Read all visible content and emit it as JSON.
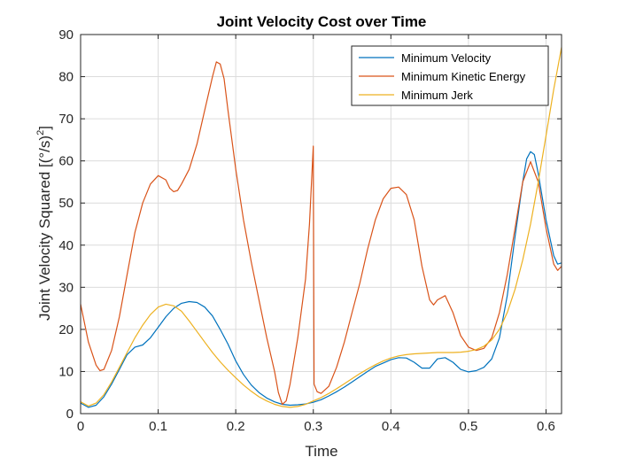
{
  "chart_data": {
    "type": "line",
    "title": "Joint Velocity Cost over Time",
    "xlabel": "Time",
    "ylabel_main": "Joint Velocity Squared [(°/s)",
    "ylabel_sup": "2",
    "ylabel_close": "]",
    "xlim": [
      0,
      0.62
    ],
    "ylim": [
      0,
      90
    ],
    "xticks": [
      0,
      0.1,
      0.2,
      0.3,
      0.4,
      0.5,
      0.6
    ],
    "xtick_labels": [
      "0",
      "0.1",
      "0.2",
      "0.3",
      "0.4",
      "0.5",
      "0.6"
    ],
    "yticks": [
      0,
      10,
      20,
      30,
      40,
      50,
      60,
      70,
      80,
      90
    ],
    "ytick_labels": [
      "0",
      "10",
      "20",
      "30",
      "40",
      "50",
      "60",
      "70",
      "80",
      "90"
    ],
    "grid": true,
    "legend_position": "top-right",
    "series": [
      {
        "name": "Minimum Velocity",
        "color": "#0072BD",
        "points": [
          [
            0,
            2.5
          ],
          [
            0.01,
            1.5
          ],
          [
            0.02,
            2
          ],
          [
            0.03,
            4
          ],
          [
            0.04,
            7
          ],
          [
            0.05,
            10.5
          ],
          [
            0.06,
            14
          ],
          [
            0.07,
            15.8
          ],
          [
            0.08,
            16.3
          ],
          [
            0.09,
            18
          ],
          [
            0.1,
            20.5
          ],
          [
            0.11,
            23
          ],
          [
            0.12,
            25
          ],
          [
            0.13,
            26.2
          ],
          [
            0.14,
            26.6
          ],
          [
            0.15,
            26.4
          ],
          [
            0.16,
            25.3
          ],
          [
            0.17,
            23.2
          ],
          [
            0.18,
            20
          ],
          [
            0.19,
            16.5
          ],
          [
            0.2,
            12.5
          ],
          [
            0.21,
            9.3
          ],
          [
            0.22,
            6.8
          ],
          [
            0.23,
            5
          ],
          [
            0.24,
            3.7
          ],
          [
            0.25,
            2.8
          ],
          [
            0.26,
            2.2
          ],
          [
            0.27,
            2
          ],
          [
            0.28,
            2.1
          ],
          [
            0.29,
            2.3
          ],
          [
            0.3,
            2.7
          ],
          [
            0.31,
            3.3
          ],
          [
            0.32,
            4.2
          ],
          [
            0.33,
            5.2
          ],
          [
            0.34,
            6.3
          ],
          [
            0.35,
            7.5
          ],
          [
            0.36,
            8.8
          ],
          [
            0.37,
            10
          ],
          [
            0.38,
            11.2
          ],
          [
            0.39,
            12
          ],
          [
            0.4,
            12.8
          ],
          [
            0.41,
            13.3
          ],
          [
            0.42,
            13.2
          ],
          [
            0.43,
            12.2
          ],
          [
            0.44,
            10.8
          ],
          [
            0.45,
            10.8
          ],
          [
            0.46,
            13
          ],
          [
            0.47,
            13.3
          ],
          [
            0.48,
            12.2
          ],
          [
            0.49,
            10.5
          ],
          [
            0.5,
            9.9
          ],
          [
            0.51,
            10.2
          ],
          [
            0.52,
            11
          ],
          [
            0.53,
            13
          ],
          [
            0.54,
            18
          ],
          [
            0.55,
            28
          ],
          [
            0.56,
            42
          ],
          [
            0.57,
            55
          ],
          [
            0.575,
            60.5
          ],
          [
            0.58,
            62.2
          ],
          [
            0.585,
            61.5
          ],
          [
            0.59,
            57
          ],
          [
            0.6,
            46
          ],
          [
            0.61,
            37.5
          ],
          [
            0.615,
            35.5
          ],
          [
            0.62,
            35.8
          ]
        ]
      },
      {
        "name": "Minimum Kinetic Energy",
        "color": "#D95319",
        "points": [
          [
            0,
            26
          ],
          [
            0.01,
            17
          ],
          [
            0.02,
            11.5
          ],
          [
            0.025,
            10.2
          ],
          [
            0.03,
            10.5
          ],
          [
            0.04,
            15
          ],
          [
            0.05,
            23
          ],
          [
            0.06,
            33
          ],
          [
            0.07,
            43
          ],
          [
            0.08,
            50
          ],
          [
            0.09,
            54.5
          ],
          [
            0.1,
            56.5
          ],
          [
            0.11,
            55.5
          ],
          [
            0.115,
            53.5
          ],
          [
            0.12,
            52.7
          ],
          [
            0.125,
            53
          ],
          [
            0.13,
            54.5
          ],
          [
            0.14,
            58
          ],
          [
            0.15,
            64
          ],
          [
            0.16,
            72
          ],
          [
            0.17,
            80
          ],
          [
            0.175,
            83.5
          ],
          [
            0.18,
            83
          ],
          [
            0.185,
            79.5
          ],
          [
            0.19,
            72
          ],
          [
            0.2,
            58
          ],
          [
            0.21,
            46
          ],
          [
            0.22,
            36
          ],
          [
            0.23,
            27
          ],
          [
            0.24,
            18
          ],
          [
            0.25,
            10
          ],
          [
            0.255,
            5
          ],
          [
            0.26,
            2.2
          ],
          [
            0.265,
            3
          ],
          [
            0.27,
            7
          ],
          [
            0.28,
            18
          ],
          [
            0.29,
            32
          ],
          [
            0.295,
            45
          ],
          [
            0.3,
            63.5
          ],
          [
            0.301,
            7
          ],
          [
            0.305,
            5.2
          ],
          [
            0.31,
            4.8
          ],
          [
            0.32,
            6.5
          ],
          [
            0.33,
            11
          ],
          [
            0.34,
            17
          ],
          [
            0.35,
            24
          ],
          [
            0.36,
            31
          ],
          [
            0.37,
            39
          ],
          [
            0.38,
            46
          ],
          [
            0.39,
            51
          ],
          [
            0.4,
            53.5
          ],
          [
            0.41,
            53.8
          ],
          [
            0.42,
            52
          ],
          [
            0.43,
            46
          ],
          [
            0.44,
            35
          ],
          [
            0.45,
            27
          ],
          [
            0.455,
            25.8
          ],
          [
            0.46,
            27
          ],
          [
            0.47,
            28
          ],
          [
            0.48,
            24
          ],
          [
            0.49,
            18.5
          ],
          [
            0.5,
            15.8
          ],
          [
            0.51,
            15
          ],
          [
            0.52,
            15.5
          ],
          [
            0.53,
            18
          ],
          [
            0.54,
            24
          ],
          [
            0.55,
            33
          ],
          [
            0.56,
            44
          ],
          [
            0.57,
            55
          ],
          [
            0.58,
            59.8
          ],
          [
            0.59,
            55
          ],
          [
            0.6,
            44
          ],
          [
            0.61,
            35.5
          ],
          [
            0.615,
            34
          ],
          [
            0.62,
            35
          ]
        ]
      },
      {
        "name": "Minimum Jerk",
        "color": "#EDB120",
        "points": [
          [
            0,
            2.8
          ],
          [
            0.01,
            1.8
          ],
          [
            0.02,
            2.5
          ],
          [
            0.03,
            4.5
          ],
          [
            0.04,
            7.5
          ],
          [
            0.05,
            11
          ],
          [
            0.06,
            14.5
          ],
          [
            0.07,
            18
          ],
          [
            0.08,
            21
          ],
          [
            0.09,
            23.5
          ],
          [
            0.1,
            25.3
          ],
          [
            0.11,
            26
          ],
          [
            0.12,
            25.6
          ],
          [
            0.13,
            24.3
          ],
          [
            0.14,
            22
          ],
          [
            0.15,
            19.5
          ],
          [
            0.16,
            17
          ],
          [
            0.17,
            14.5
          ],
          [
            0.18,
            12.3
          ],
          [
            0.19,
            10.3
          ],
          [
            0.2,
            8.5
          ],
          [
            0.21,
            6.8
          ],
          [
            0.22,
            5.3
          ],
          [
            0.23,
            4
          ],
          [
            0.24,
            3
          ],
          [
            0.25,
            2.2
          ],
          [
            0.26,
            1.7
          ],
          [
            0.27,
            1.5
          ],
          [
            0.28,
            1.7
          ],
          [
            0.29,
            2.2
          ],
          [
            0.3,
            3
          ],
          [
            0.31,
            3.8
          ],
          [
            0.32,
            4.8
          ],
          [
            0.33,
            5.9
          ],
          [
            0.34,
            7.1
          ],
          [
            0.35,
            8.3
          ],
          [
            0.36,
            9.5
          ],
          [
            0.37,
            10.6
          ],
          [
            0.38,
            11.6
          ],
          [
            0.39,
            12.5
          ],
          [
            0.4,
            13.2
          ],
          [
            0.41,
            13.7
          ],
          [
            0.42,
            14
          ],
          [
            0.43,
            14.2
          ],
          [
            0.44,
            14.3
          ],
          [
            0.45,
            14.4
          ],
          [
            0.46,
            14.5
          ],
          [
            0.47,
            14.5
          ],
          [
            0.48,
            14.5
          ],
          [
            0.49,
            14.6
          ],
          [
            0.5,
            14.8
          ],
          [
            0.51,
            15.2
          ],
          [
            0.52,
            16
          ],
          [
            0.53,
            17.5
          ],
          [
            0.54,
            20
          ],
          [
            0.55,
            24
          ],
          [
            0.56,
            29.5
          ],
          [
            0.57,
            36.5
          ],
          [
            0.58,
            45
          ],
          [
            0.59,
            55
          ],
          [
            0.6,
            66
          ],
          [
            0.61,
            77
          ],
          [
            0.62,
            87
          ]
        ]
      }
    ]
  }
}
